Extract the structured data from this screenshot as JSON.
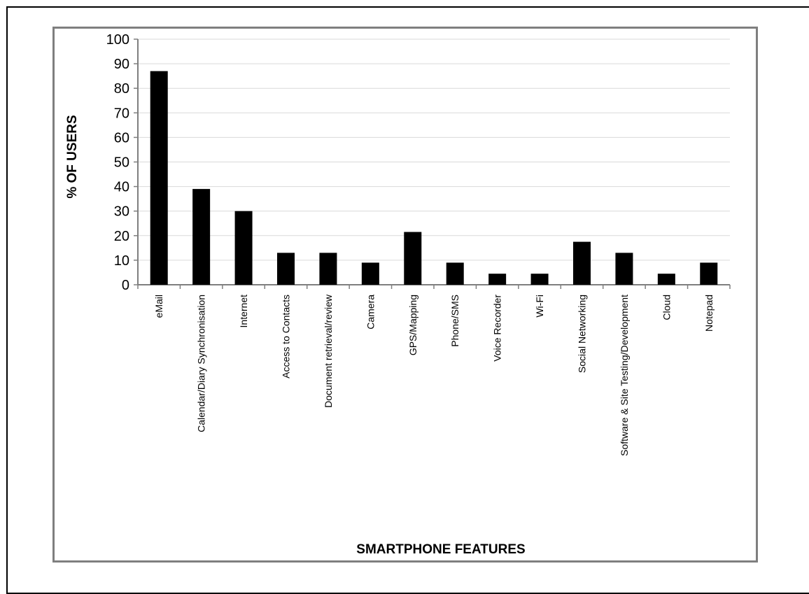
{
  "chart_data": {
    "type": "bar",
    "categories": [
      "eMail",
      "Calendar/Diary Synchronisation",
      "Internet",
      "Access to Contacts",
      "Document retrieval/review",
      "Camera",
      "GPS/Mapping",
      "Phone/SMS",
      "Voice Recorder",
      "Wi-Fi",
      "Social Networking",
      "Software & Site Testing/Development",
      "Cloud",
      "Notepad"
    ],
    "values": [
      87,
      39,
      30,
      13,
      13,
      9,
      21.5,
      9,
      4.5,
      4.5,
      17.5,
      13,
      4.5,
      9
    ],
    "xlabel": "SMARTPHONE FEATURES",
    "ylabel": "% OF USERS",
    "ylim": [
      0,
      100
    ],
    "yticks": [
      0,
      10,
      20,
      30,
      40,
      50,
      60,
      70,
      80,
      90,
      100
    ],
    "grid": true,
    "colors": {
      "bar": "#000000",
      "grid": "#d9d9d9",
      "axis": "#7f7f7f",
      "frame": "#7f7f7f"
    }
  }
}
